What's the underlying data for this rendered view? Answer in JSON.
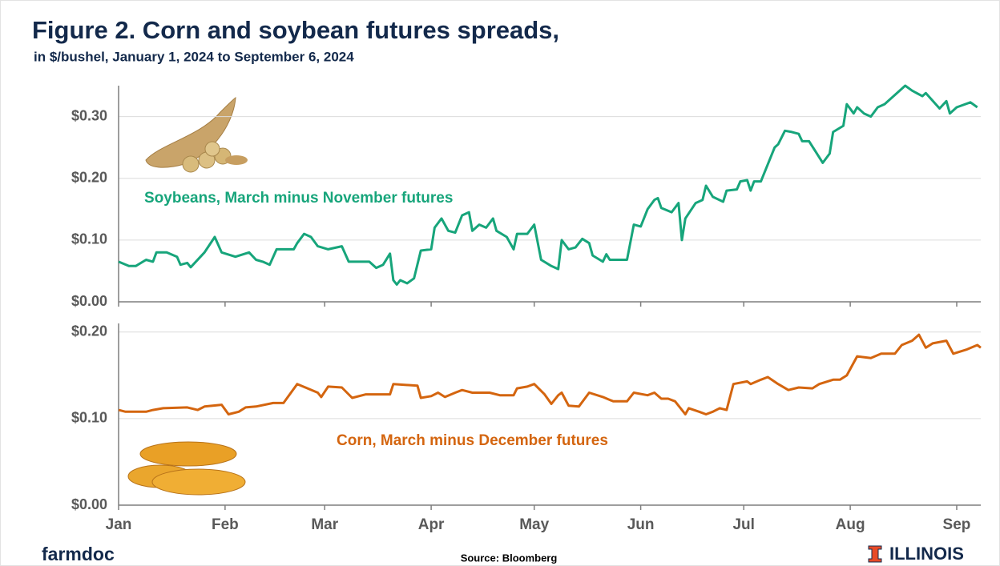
{
  "title": "Figure 2. Corn and soybean futures spreads,",
  "subtitle": "in $/bushel, January 1, 2024 to September 6, 2024",
  "source": "Source: Bloomberg",
  "brand": "farmdoc",
  "logo": "ILLINOIS",
  "chart_data": [
    {
      "type": "line",
      "annotation": "Soybeans, March minus November futures",
      "xlim": [
        0,
        251
      ],
      "ylim": [
        0,
        0.35
      ],
      "yticks": [
        {
          "value": 0,
          "label": "$0.00"
        },
        {
          "value": 0.1,
          "label": "$0.10"
        },
        {
          "value": 0.2,
          "label": "$0.20"
        },
        {
          "value": 0.3,
          "label": "$0.30"
        }
      ],
      "grid": true,
      "series": [
        {
          "color": "#17a57b",
          "x": [
            0,
            3,
            5,
            8,
            10,
            11,
            14,
            17,
            18,
            20,
            21,
            25,
            28,
            30,
            34,
            38,
            40,
            42,
            44,
            46,
            51,
            52,
            54,
            56,
            58,
            61,
            65,
            67,
            73,
            75,
            77,
            79,
            80,
            81,
            82,
            84,
            86,
            88,
            91,
            92,
            94,
            96,
            98,
            100,
            102,
            103,
            105,
            107,
            109,
            110,
            113,
            115,
            116,
            119,
            121,
            123,
            126,
            128,
            129,
            131,
            133,
            135,
            137,
            138,
            141,
            142,
            143,
            148,
            150,
            152,
            154,
            156,
            157,
            158,
            161,
            163,
            164,
            165,
            168,
            170,
            171,
            173,
            176,
            177,
            180,
            181,
            183,
            184,
            185,
            187,
            191,
            192,
            194,
            196,
            198,
            199,
            201,
            205,
            207,
            208,
            211,
            212,
            214,
            215,
            217,
            219,
            221,
            223,
            226,
            229,
            231,
            234,
            235,
            239,
            241,
            242,
            244,
            248,
            250
          ],
          "values": [
            0.065,
            0.058,
            0.058,
            0.068,
            0.065,
            0.08,
            0.08,
            0.073,
            0.06,
            0.063,
            0.056,
            0.08,
            0.105,
            0.08,
            0.073,
            0.08,
            0.068,
            0.065,
            0.06,
            0.085,
            0.085,
            0.095,
            0.11,
            0.105,
            0.09,
            0.085,
            0.09,
            0.065,
            0.065,
            0.055,
            0.06,
            0.078,
            0.035,
            0.028,
            0.035,
            0.03,
            0.038,
            0.083,
            0.085,
            0.12,
            0.135,
            0.115,
            0.112,
            0.14,
            0.145,
            0.115,
            0.125,
            0.12,
            0.135,
            0.115,
            0.105,
            0.085,
            0.11,
            0.11,
            0.125,
            0.068,
            0.058,
            0.053,
            0.1,
            0.085,
            0.088,
            0.102,
            0.095,
            0.075,
            0.065,
            0.077,
            0.068,
            0.068,
            0.125,
            0.122,
            0.15,
            0.165,
            0.168,
            0.152,
            0.145,
            0.16,
            0.1,
            0.135,
            0.16,
            0.165,
            0.188,
            0.17,
            0.162,
            0.18,
            0.182,
            0.195,
            0.197,
            0.18,
            0.195,
            0.195,
            0.25,
            0.255,
            0.277,
            0.275,
            0.272,
            0.26,
            0.26,
            0.225,
            0.24,
            0.275,
            0.285,
            0.32,
            0.305,
            0.315,
            0.305,
            0.3,
            0.315,
            0.32,
            0.335,
            0.35,
            0.342,
            0.333,
            0.338,
            0.313,
            0.325,
            0.305,
            0.315,
            0.323,
            0.315
          ]
        }
      ]
    },
    {
      "type": "line",
      "annotation": "Corn, March minus December futures",
      "xlim": [
        0,
        251
      ],
      "ylim": [
        0,
        0.21
      ],
      "xticks": [
        {
          "value": 0,
          "label": "Jan"
        },
        {
          "value": 31,
          "label": "Feb"
        },
        {
          "value": 60,
          "label": "Mar"
        },
        {
          "value": 91,
          "label": "Apr"
        },
        {
          "value": 121,
          "label": "May"
        },
        {
          "value": 152,
          "label": "Jun"
        },
        {
          "value": 182,
          "label": "Jul"
        },
        {
          "value": 213,
          "label": "Aug"
        },
        {
          "value": 244,
          "label": "Sep"
        }
      ],
      "yticks": [
        {
          "value": 0,
          "label": "$0.00"
        },
        {
          "value": 0.1,
          "label": "$0.10"
        },
        {
          "value": 0.2,
          "label": "$0.20"
        }
      ],
      "grid": true,
      "series": [
        {
          "color": "#d4650f",
          "x": [
            0,
            2,
            8,
            10,
            13,
            20,
            23,
            25,
            30,
            32,
            35,
            37,
            40,
            45,
            48,
            52,
            55,
            58,
            59,
            61,
            65,
            68,
            72,
            79,
            80,
            87,
            88,
            91,
            93,
            95,
            98,
            100,
            103,
            108,
            111,
            115,
            116,
            119,
            121,
            124,
            126,
            128,
            129,
            131,
            134,
            137,
            141,
            144,
            148,
            150,
            154,
            156,
            158,
            160,
            162,
            165,
            166,
            169,
            171,
            173,
            175,
            177,
            179,
            183,
            184,
            187,
            189,
            192,
            195,
            198,
            202,
            204,
            208,
            210,
            212,
            215,
            219,
            222,
            226,
            228,
            231,
            233,
            235,
            237,
            241,
            243,
            247,
            250,
            251
          ],
          "values": [
            0.11,
            0.108,
            0.108,
            0.11,
            0.112,
            0.113,
            0.11,
            0.114,
            0.116,
            0.105,
            0.108,
            0.113,
            0.114,
            0.118,
            0.118,
            0.14,
            0.135,
            0.13,
            0.125,
            0.137,
            0.136,
            0.124,
            0.128,
            0.128,
            0.14,
            0.138,
            0.124,
            0.126,
            0.13,
            0.125,
            0.13,
            0.133,
            0.13,
            0.13,
            0.127,
            0.127,
            0.135,
            0.137,
            0.14,
            0.128,
            0.117,
            0.127,
            0.13,
            0.115,
            0.114,
            0.13,
            0.125,
            0.12,
            0.12,
            0.13,
            0.127,
            0.13,
            0.123,
            0.123,
            0.12,
            0.105,
            0.112,
            0.108,
            0.105,
            0.108,
            0.112,
            0.11,
            0.14,
            0.143,
            0.14,
            0.145,
            0.148,
            0.14,
            0.133,
            0.136,
            0.135,
            0.14,
            0.145,
            0.145,
            0.15,
            0.172,
            0.17,
            0.175,
            0.175,
            0.185,
            0.19,
            0.197,
            0.182,
            0.187,
            0.19,
            0.175,
            0.18,
            0.185,
            0.182
          ]
        }
      ]
    }
  ]
}
